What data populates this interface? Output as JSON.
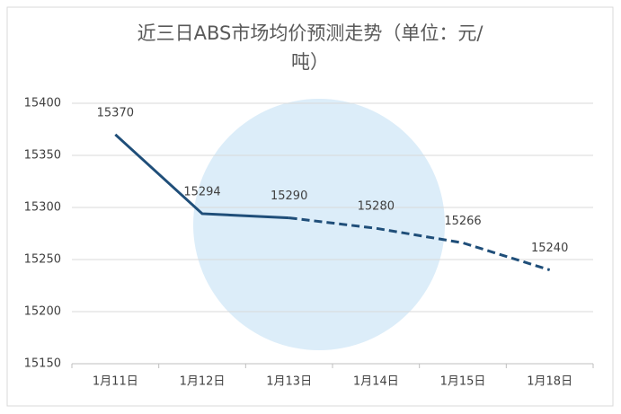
{
  "chart_data": {
    "type": "line",
    "title": [
      "近三日ABS市场均价预测走势（单位：元/",
      "吨）"
    ],
    "categories": [
      "1月11日",
      "1月12日",
      "1月13日",
      "1月14日",
      "1月15日",
      "1月18日"
    ],
    "series": [
      {
        "color": "#1f4e79",
        "line_style": "solid",
        "values": [
          15370,
          15294,
          15290,
          null,
          null,
          null
        ]
      },
      {
        "color": "#1f4e79",
        "line_style": "dashed",
        "values": [
          null,
          null,
          15290,
          15280,
          15266,
          15240
        ]
      }
    ],
    "ylim": [
      15150,
      15400
    ],
    "yticks": [
      15150,
      15200,
      15250,
      15300,
      15350,
      15400
    ],
    "grid": true
  }
}
